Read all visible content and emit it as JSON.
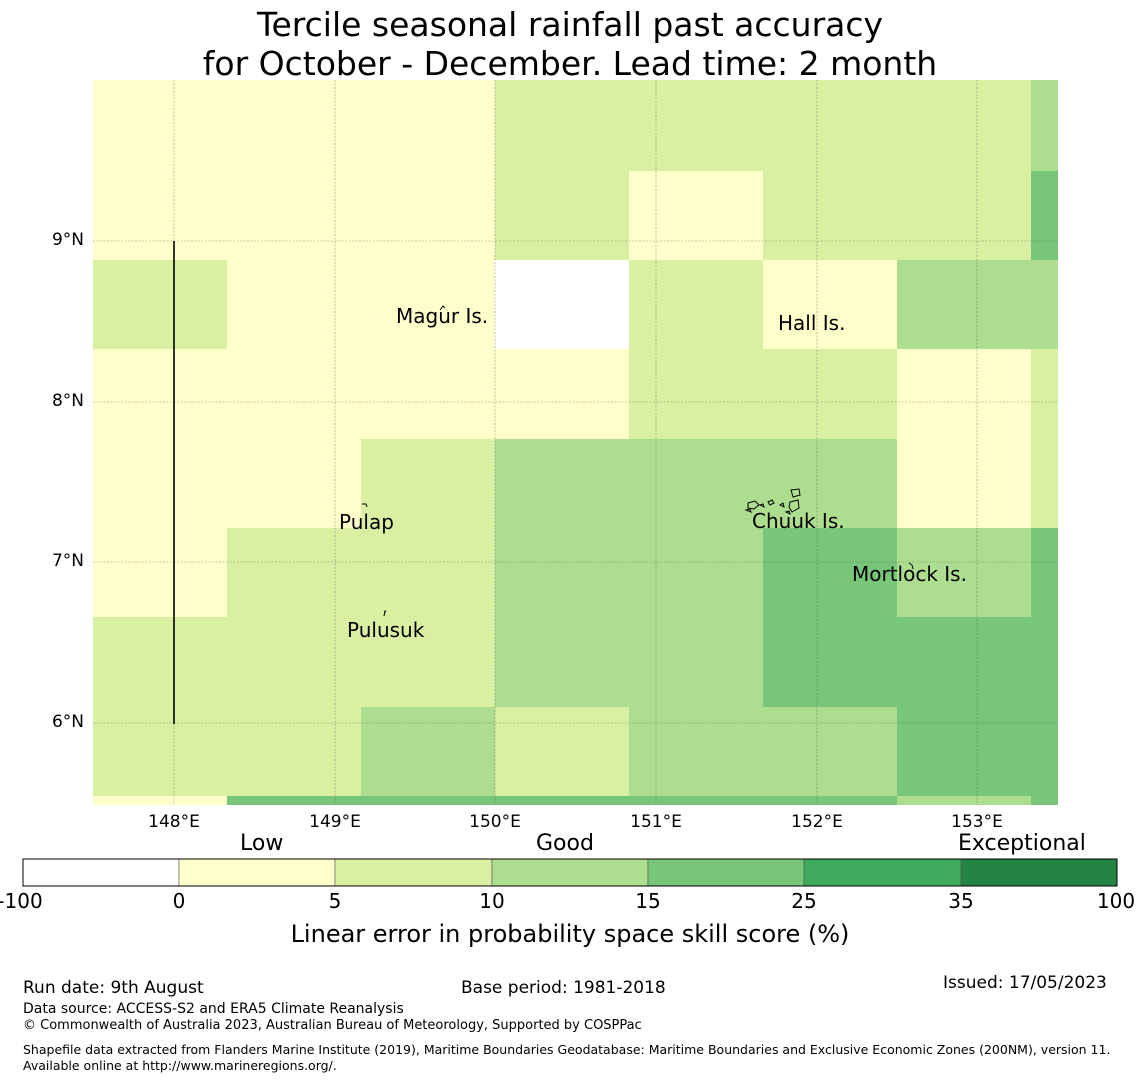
{
  "title": {
    "line1": "Tercile seasonal rainfall past accuracy",
    "line2": "for October - December. Lead time: 2 month"
  },
  "map": {
    "lon_range": [
      147.5,
      153.5
    ],
    "lat_range": [
      5.5,
      10.0
    ],
    "lon_ticks": [
      "148°E",
      "149°E",
      "150°E",
      "151°E",
      "152°E",
      "153°E"
    ],
    "lat_ticks": [
      "9°N",
      "8°N",
      "7°N",
      "6°N"
    ],
    "grid": true,
    "places": [
      {
        "name": "Magur Is."
      },
      {
        "name": "Hall Is."
      },
      {
        "name": "Pulap"
      },
      {
        "name": "Chuuk Is."
      },
      {
        "name": "Mortlock Is."
      },
      {
        "name": "Pulusuk"
      }
    ],
    "colors": {
      "class0": "#ffffff",
      "class1": "#ffffcc",
      "class2": "#d9f0a3",
      "class3": "#addd8e",
      "class4": "#78c679",
      "class5": "#41ab5d",
      "class6": "#238443"
    }
  },
  "colorbar": {
    "categories": [
      "Low",
      "Good",
      "Exceptional"
    ],
    "ticks": [
      "-100",
      "0",
      "5",
      "10",
      "15",
      "25",
      "35",
      "100"
    ],
    "colors": [
      "#ffffff",
      "#ffffcc",
      "#d9f0a3",
      "#addd8e",
      "#78c679",
      "#41ab5d",
      "#238443"
    ],
    "title": "Linear error in probability space skill score (%)"
  },
  "footer": {
    "run_date": "Run date: 9th August",
    "base_period": "Base period: 1981-2018",
    "issued": "Issued: 17/05/2023",
    "data_source": "Data source: ACCESS-S2 and ERA5 Climate Reanalysis",
    "copyright": "© Commonwealth of Australia 2023, Australian Bureau of Meteorology, Supported by COSPPac",
    "shapefile": "Shapefile data extracted from Flanders Marine Institute (2019), Maritime Boundaries Geodatabase: Maritime Boundaries and Exclusive Economic Zones (200NM), version 11. Available online at http://www.marineregions.org/."
  }
}
